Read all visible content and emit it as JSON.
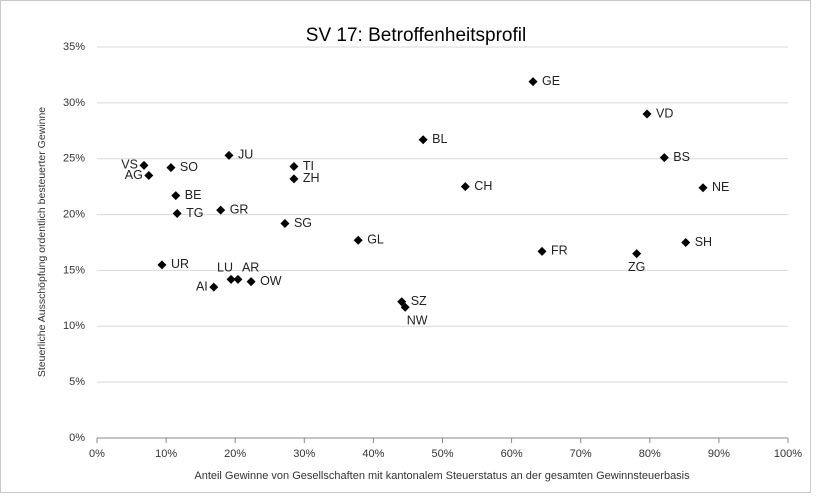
{
  "chart_data": {
    "type": "scatter",
    "title": "SV 17: Betroffenheitsprofil",
    "x_label": "Anteil Gewinne von Gesellschaften mit kantonalem Steuerstatus an der gesamten Gewinnsteuerbasis",
    "y_label": "Steuerliche Ausschöpfung ordentlich besteuerter Gewinne",
    "labels": [
      "GE",
      "VD",
      "BL",
      "JU",
      "BS",
      "VS",
      "SO",
      "TI",
      "AG",
      "ZH",
      "CH",
      "NE",
      "BE",
      "GR",
      "TG",
      "SG",
      "GL",
      "SH",
      "FR",
      "ZG",
      "UR",
      "LU",
      "AR",
      "OW",
      "AI",
      "SZ",
      "NW"
    ],
    "x": [
      63.1,
      79.6,
      47.2,
      19.1,
      82.1,
      6.8,
      10.7,
      28.5,
      7.5,
      28.5,
      53.3,
      87.7,
      11.4,
      17.9,
      11.6,
      27.2,
      37.8,
      85.2,
      64.4,
      78.1,
      9.4,
      19.4,
      20.4,
      22.3,
      16.9,
      44.1,
      44.6
    ],
    "values": [
      31.9,
      29.0,
      26.7,
      25.3,
      25.1,
      24.4,
      24.2,
      24.3,
      23.5,
      23.2,
      22.5,
      22.4,
      21.7,
      20.4,
      20.1,
      19.2,
      17.7,
      17.5,
      16.7,
      16.5,
      15.5,
      14.2,
      14.2,
      14.0,
      13.5,
      12.2,
      11.7
    ],
    "color": "#000000",
    "xlim": [
      0,
      100
    ],
    "xticks": [
      {
        "value": 0,
        "label": "0%"
      },
      {
        "value": 10,
        "label": "10%"
      },
      {
        "value": 20,
        "label": "20%"
      },
      {
        "value": 30,
        "label": "30%"
      },
      {
        "value": 40,
        "label": "40%"
      },
      {
        "value": 50,
        "label": "50%"
      },
      {
        "value": 60,
        "label": "60%"
      },
      {
        "value": 70,
        "label": "70%"
      },
      {
        "value": 80,
        "label": "80%"
      },
      {
        "value": 90,
        "label": "90%"
      },
      {
        "value": 100,
        "label": "100%"
      }
    ],
    "ylim": [
      0,
      35
    ],
    "yticks": [
      {
        "value": 0,
        "label": "0%"
      },
      {
        "value": 5,
        "label": "5%"
      },
      {
        "value": 10,
        "label": "10%"
      },
      {
        "value": 15,
        "label": "15%"
      },
      {
        "value": 20,
        "label": "20%"
      },
      {
        "value": 25,
        "label": "25%"
      },
      {
        "value": 30,
        "label": "30%"
      },
      {
        "value": 35,
        "label": "35%"
      }
    ],
    "grid": true
  }
}
